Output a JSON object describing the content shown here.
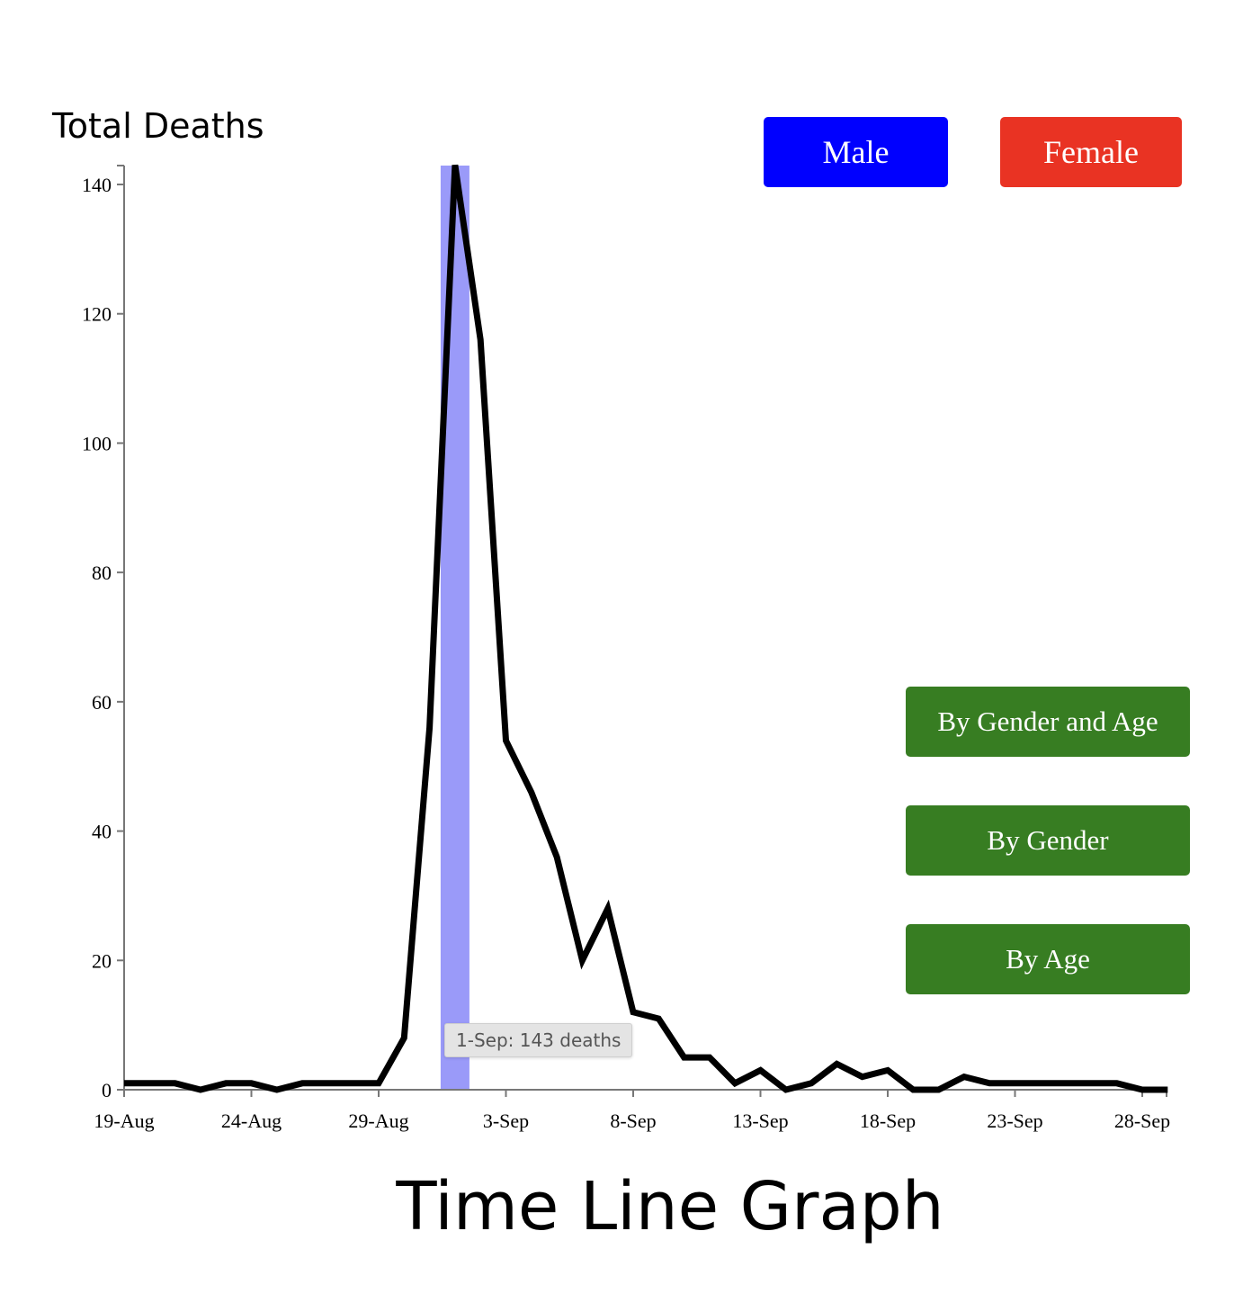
{
  "header": {
    "y_title": "Total Deaths"
  },
  "legend": {
    "male_label": "Male",
    "female_label": "Female",
    "male_color": "#0000ff",
    "female_color": "#e93323"
  },
  "views": {
    "gender_age_label": "By Gender and Age",
    "gender_label": "By Gender",
    "age_label": "By Age",
    "button_color": "#377d22"
  },
  "footer": {
    "title": "Time Line Graph"
  },
  "tooltip": {
    "text": "1-Sep: 143 deaths"
  },
  "chart_data": {
    "type": "line",
    "title": "Time Line Graph",
    "ylabel": "Total Deaths",
    "xlabel": "",
    "ylim": [
      0,
      143
    ],
    "yticks": [
      0,
      20,
      40,
      60,
      80,
      100,
      120,
      140
    ],
    "xtick_labels": [
      "19-Aug",
      "24-Aug",
      "29-Aug",
      "3-Sep",
      "8-Sep",
      "13-Sep",
      "18-Sep",
      "23-Sep",
      "28-Sep"
    ],
    "highlight": {
      "date": "1-Sep",
      "color": "#9a9af9"
    },
    "line_color": "#000000",
    "series": [
      {
        "x": [
          "19-Aug",
          "20-Aug",
          "21-Aug",
          "22-Aug",
          "23-Aug",
          "24-Aug",
          "25-Aug",
          "26-Aug",
          "27-Aug",
          "28-Aug",
          "29-Aug",
          "30-Aug",
          "31-Aug",
          "1-Sep",
          "2-Sep",
          "3-Sep",
          "4-Sep",
          "5-Sep",
          "6-Sep",
          "7-Sep",
          "8-Sep",
          "9-Sep",
          "10-Sep",
          "11-Sep",
          "12-Sep",
          "13-Sep",
          "14-Sep",
          "15-Sep",
          "16-Sep",
          "17-Sep",
          "18-Sep",
          "19-Sep",
          "20-Sep",
          "21-Sep",
          "22-Sep",
          "23-Sep",
          "24-Sep",
          "25-Sep",
          "26-Sep",
          "27-Sep",
          "28-Sep",
          "29-Sep"
        ],
        "values": [
          1,
          1,
          1,
          0,
          1,
          1,
          0,
          1,
          1,
          1,
          1,
          8,
          56,
          143,
          116,
          54,
          46,
          36,
          20,
          28,
          12,
          11,
          5,
          5,
          1,
          3,
          0,
          1,
          4,
          2,
          3,
          0,
          0,
          2,
          1,
          1,
          1,
          1,
          1,
          1,
          0,
          0
        ]
      }
    ]
  }
}
